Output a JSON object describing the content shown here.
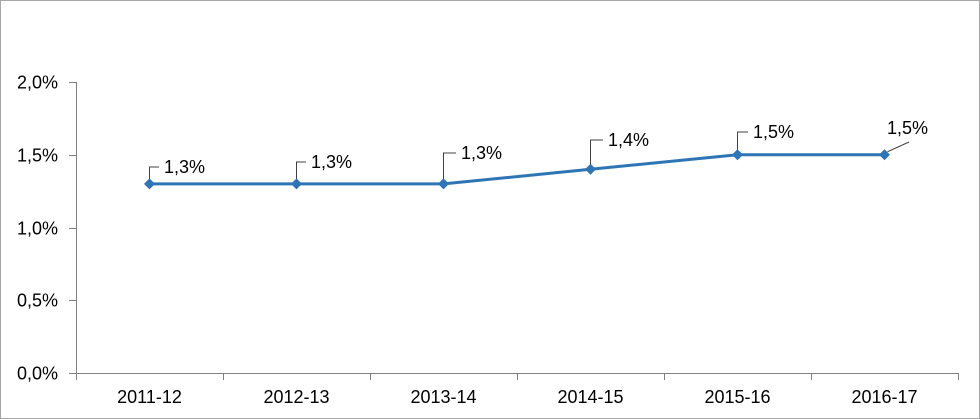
{
  "chart_data": {
    "type": "line",
    "title": "",
    "xlabel": "",
    "ylabel": "",
    "categories": [
      "2011-12",
      "2012-13",
      "2013-14",
      "2014-15",
      "2015-16",
      "2016-17"
    ],
    "series": [
      {
        "values": [
          1.3,
          1.3,
          1.3,
          1.4,
          1.5,
          1.5
        ],
        "data_labels": [
          "1,3%",
          "1,3%",
          "1,3%",
          "1,4%",
          "1,5%",
          "1,5%"
        ]
      }
    ],
    "y_axis": {
      "min": 0,
      "max": 2,
      "ticks": [
        {
          "value": 2.0,
          "label": "2,0%"
        },
        {
          "value": 1.5,
          "label": "1,5%"
        },
        {
          "value": 1.0,
          "label": "1,0%"
        },
        {
          "value": 0.5,
          "label": "0,5%"
        },
        {
          "value": 0.0,
          "label": "0,0%"
        }
      ]
    },
    "grid": false,
    "legend": "none",
    "marker": "diamond",
    "colors": {
      "line": "#2E75B6",
      "axis": "#808080",
      "text": "#000000",
      "leader": "#404040",
      "border": "#A6A6A6",
      "background": "#FFFFFF"
    }
  }
}
